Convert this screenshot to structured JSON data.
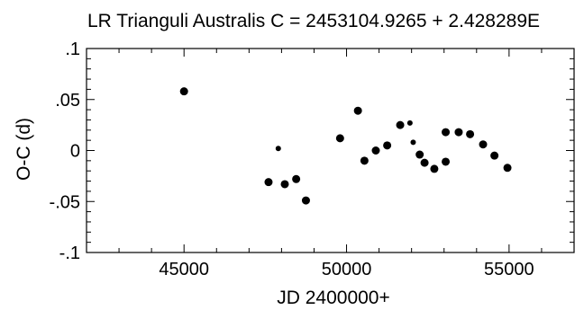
{
  "chart_data": {
    "type": "scatter",
    "title": "LR Trianguli Australis   C = 2453104.9265 + 2.428289E",
    "xlabel": "JD 2400000+",
    "ylabel": "O-C (d)",
    "xlim": [
      42000,
      57000
    ],
    "ylim": [
      -0.1,
      0.1
    ],
    "x_ticks": [
      45000,
      50000,
      55000
    ],
    "x_tick_labels": [
      "45000",
      "50000",
      "55000"
    ],
    "y_ticks": [
      0.1,
      0.05,
      0,
      -0.05,
      -0.1
    ],
    "y_tick_labels": [
      ".1",
      ".05",
      "0",
      "-.05",
      "-.1"
    ],
    "grid": false,
    "series": [
      {
        "marker": "large-dot",
        "points": [
          [
            45000,
            0.058
          ],
          [
            47600,
            -0.031
          ],
          [
            48100,
            -0.033
          ],
          [
            48450,
            -0.028
          ],
          [
            48750,
            -0.049
          ],
          [
            49800,
            0.012
          ],
          [
            50350,
            0.039
          ],
          [
            50550,
            -0.01
          ],
          [
            50900,
            0.0
          ],
          [
            51250,
            0.005
          ],
          [
            51650,
            0.025
          ],
          [
            52250,
            -0.004
          ],
          [
            52400,
            -0.012
          ],
          [
            52700,
            -0.018
          ],
          [
            53050,
            0.018
          ],
          [
            53050,
            -0.011
          ],
          [
            53450,
            0.018
          ],
          [
            53800,
            0.016
          ],
          [
            54200,
            0.006
          ],
          [
            54550,
            -0.005
          ],
          [
            54950,
            -0.017
          ]
        ]
      },
      {
        "marker": "small-dot",
        "points": [
          [
            47900,
            0.002
          ],
          [
            51950,
            0.027
          ],
          [
            52050,
            0.008
          ]
        ]
      }
    ]
  }
}
